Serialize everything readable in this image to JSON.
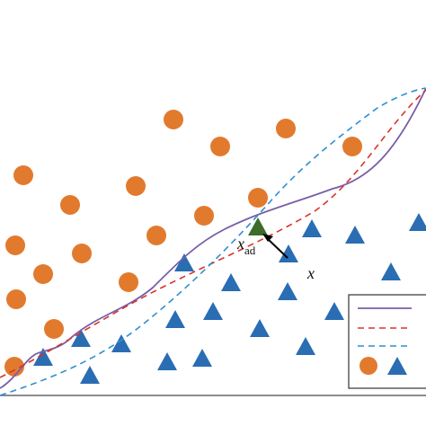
{
  "labels": {
    "adversarial": {
      "base": "x",
      "subscript": "ad"
    },
    "original": "x"
  }
}
